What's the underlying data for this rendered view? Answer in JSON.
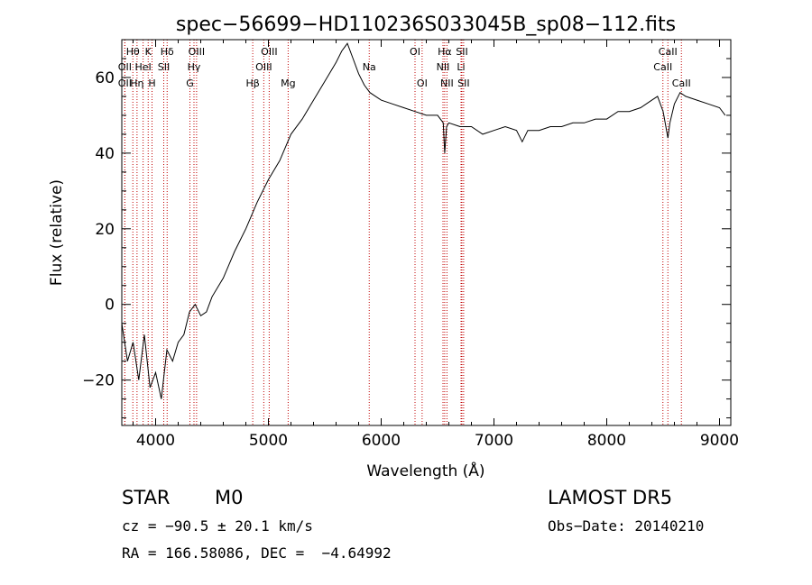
{
  "chart_data": {
    "type": "line",
    "title": "spec−56699−HD110236S033045B_sp08−112.fits",
    "xlabel": "Wavelength (Å)",
    "ylabel": "Flux (relative)",
    "xlim": [
      3700,
      9100
    ],
    "ylim": [
      -32,
      70
    ],
    "xticks": [
      4000,
      5000,
      6000,
      7000,
      8000,
      9000
    ],
    "xtick_labels": [
      "4000",
      "5000",
      "6000",
      "7000",
      "8000",
      "9000"
    ],
    "yticks": [
      -20,
      0,
      20,
      40,
      60
    ],
    "ytick_labels": [
      "−20",
      "0",
      "20",
      "40",
      "60"
    ],
    "grid": false,
    "series": [
      {
        "x": [
          3700,
          3750,
          3800,
          3850,
          3900,
          3950,
          4000,
          4050,
          4100,
          4150,
          4200,
          4250,
          4300,
          4350,
          4400,
          4450,
          4500,
          4600,
          4700,
          4800,
          4900,
          5000,
          5100,
          5200,
          5300,
          5400,
          5500,
          5600,
          5650,
          5700,
          5750,
          5800,
          5850,
          5900,
          5950,
          6000,
          6100,
          6200,
          6300,
          6400,
          6500,
          6550,
          6563,
          6580,
          6600,
          6700,
          6800,
          6900,
          7000,
          7100,
          7200,
          7250,
          7300,
          7400,
          7500,
          7600,
          7700,
          7800,
          7900,
          8000,
          8100,
          8200,
          8300,
          8400,
          8450,
          8500,
          8542,
          8560,
          8600,
          8650,
          8700,
          8800,
          8900,
          9000,
          9050
        ],
        "y": [
          -5,
          -15,
          -10,
          -20,
          -8,
          -22,
          -18,
          -25,
          -12,
          -15,
          -10,
          -8,
          -2,
          0,
          -3,
          -2,
          2,
          7,
          14,
          20,
          27,
          33,
          38,
          45,
          49,
          54,
          59,
          64,
          67,
          69,
          65,
          61,
          58,
          56,
          55,
          54,
          53,
          52,
          51,
          50,
          50,
          48,
          40,
          47,
          48,
          47,
          47,
          45,
          46,
          47,
          46,
          43,
          46,
          46,
          47,
          47,
          48,
          48,
          49,
          49,
          51,
          51,
          52,
          54,
          55,
          51,
          44,
          48,
          53,
          56,
          55,
          54,
          53,
          52,
          50
        ]
      }
    ],
    "lines": [
      {
        "x": 3798,
        "label": "Hθ",
        "row": 1
      },
      {
        "x": 3727,
        "label": "OII",
        "row": 2
      },
      {
        "x": 3727,
        "label": "OII",
        "row": 3
      },
      {
        "x": 3835,
        "label": "Hη",
        "row": 3
      },
      {
        "x": 3889,
        "label": "HeI",
        "row": 2
      },
      {
        "x": 3934,
        "label": "K",
        "row": 1
      },
      {
        "x": 3968,
        "label": "H",
        "row": 3
      },
      {
        "x": 4072,
        "label": "SII",
        "row": 2
      },
      {
        "x": 4102,
        "label": "Hδ",
        "row": 1
      },
      {
        "x": 4304,
        "label": "G",
        "row": 3
      },
      {
        "x": 4340,
        "label": "Hγ",
        "row": 2
      },
      {
        "x": 4363,
        "label": "OIII",
        "row": 1
      },
      {
        "x": 4861,
        "label": "Hβ",
        "row": 3
      },
      {
        "x": 4959,
        "label": "OIII",
        "row": 2
      },
      {
        "x": 5007,
        "label": "OIII",
        "row": 1
      },
      {
        "x": 5175,
        "label": "Mg",
        "row": 3
      },
      {
        "x": 5894,
        "label": "Na",
        "row": 2
      },
      {
        "x": 6300,
        "label": "OI",
        "row": 1
      },
      {
        "x": 6363,
        "label": "OI",
        "row": 3
      },
      {
        "x": 6548,
        "label": "NII",
        "row": 2
      },
      {
        "x": 6563,
        "label": "Hα",
        "row": 1
      },
      {
        "x": 6583,
        "label": "NII",
        "row": 3
      },
      {
        "x": 6708,
        "label": "Li",
        "row": 2
      },
      {
        "x": 6716,
        "label": "SII",
        "row": 1
      },
      {
        "x": 6731,
        "label": "SII",
        "row": 3
      },
      {
        "x": 8498,
        "label": "CaII",
        "row": 2
      },
      {
        "x": 8542,
        "label": "CaII",
        "row": 1
      },
      {
        "x": 8662,
        "label": "CaII",
        "row": 3
      }
    ]
  },
  "info": {
    "class_label": "STAR",
    "subclass": "M0",
    "survey": "LAMOST DR5",
    "cz": "cz = −90.5 ± 20.1 km/s",
    "obs_date": "Obs−Date: 20140210",
    "coords": "RA = 166.58086, DEC =  −4.64992"
  }
}
